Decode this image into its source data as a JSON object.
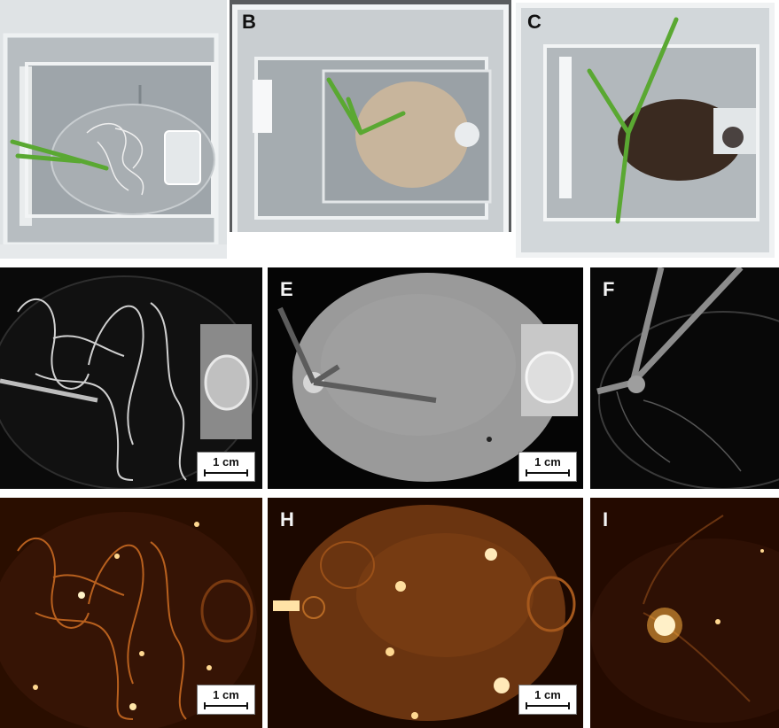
{
  "panels": {
    "a": {
      "label": ""
    },
    "b": {
      "label": "B"
    },
    "c": {
      "label": "C"
    },
    "d": {
      "label": ""
    },
    "e": {
      "label": "E"
    },
    "f": {
      "label": "F"
    },
    "g": {
      "label": ""
    },
    "h": {
      "label": "H"
    },
    "i": {
      "label": "I"
    }
  },
  "scale_bar_label": "1 cm",
  "colors": {
    "photo_bg": "#c9ced1",
    "sand": "#c8b59c",
    "soil": "#3a2a20",
    "leaf": "#5aa832",
    "xray_bg": "#0a0a0a",
    "neutron_bg": "#2a0e00",
    "neutron_glow": "#ffb040"
  }
}
